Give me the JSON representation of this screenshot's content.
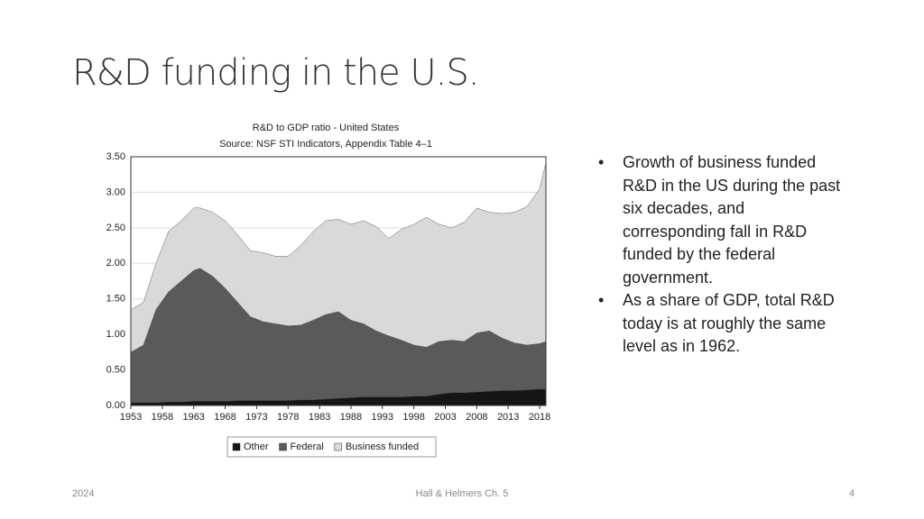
{
  "slide": {
    "title": "R&D funding in the U.S.",
    "bullets": [
      "Growth of business funded R&D in the US during the past six decades, and corresponding fall in R&D funded by the federal government.",
      "As a share of GDP, total R&D today is at roughly the same level as in 1962."
    ],
    "footer": {
      "left": "2024",
      "center": "Hall & Helmers Ch. 5",
      "right": "4"
    }
  },
  "chart_data": {
    "type": "stacked-area",
    "title": "R&D to GDP ratio - United States",
    "subtitle": "Source: NSF STI Indicators, Appendix Table 4–1",
    "x": [
      1953,
      1955,
      1957,
      1959,
      1961,
      1963,
      1964,
      1966,
      1968,
      1970,
      1972,
      1974,
      1976,
      1978,
      1980,
      1982,
      1984,
      1986,
      1988,
      1990,
      1992,
      1994,
      1996,
      1998,
      2000,
      2002,
      2004,
      2006,
      2008,
      2010,
      2012,
      2014,
      2016,
      2018,
      2019
    ],
    "series": [
      {
        "name": "Other",
        "color": "#151515",
        "values": [
          0.04,
          0.04,
          0.04,
          0.05,
          0.05,
          0.06,
          0.06,
          0.06,
          0.06,
          0.07,
          0.07,
          0.07,
          0.07,
          0.07,
          0.08,
          0.08,
          0.09,
          0.1,
          0.11,
          0.12,
          0.12,
          0.12,
          0.12,
          0.13,
          0.13,
          0.16,
          0.18,
          0.18,
          0.19,
          0.2,
          0.21,
          0.21,
          0.22,
          0.23,
          0.23
        ]
      },
      {
        "name": "Federal",
        "color": "#5a5a5a",
        "values": [
          0.71,
          0.81,
          1.31,
          1.55,
          1.7,
          1.84,
          1.87,
          1.76,
          1.59,
          1.38,
          1.18,
          1.11,
          1.08,
          1.05,
          1.05,
          1.12,
          1.19,
          1.22,
          1.09,
          1.03,
          0.93,
          0.86,
          0.8,
          0.72,
          0.69,
          0.74,
          0.74,
          0.72,
          0.83,
          0.85,
          0.74,
          0.67,
          0.63,
          0.64,
          0.67
        ]
      },
      {
        "name": "Business funded",
        "color": "#d9d9d9",
        "values": [
          0.6,
          0.6,
          0.65,
          0.85,
          0.85,
          0.88,
          0.85,
          0.9,
          0.95,
          0.95,
          0.93,
          0.97,
          0.95,
          0.98,
          1.12,
          1.25,
          1.32,
          1.3,
          1.35,
          1.45,
          1.47,
          1.37,
          1.56,
          1.7,
          1.83,
          1.65,
          1.58,
          1.68,
          1.76,
          1.67,
          1.75,
          1.84,
          1.95,
          2.18,
          2.52
        ]
      }
    ],
    "xlim": [
      1953,
      2019
    ],
    "xticks": [
      1953,
      1958,
      1963,
      1968,
      1973,
      1978,
      1983,
      1988,
      1993,
      1998,
      2003,
      2008,
      2013,
      2018
    ],
    "ylim": [
      0,
      3.5
    ],
    "yticks": [
      {
        "value": 0,
        "label": "0.00"
      },
      {
        "value": 0.5,
        "label": "0.50"
      },
      {
        "value": 1,
        "label": "1.00"
      },
      {
        "value": 1.5,
        "label": "1.50"
      },
      {
        "value": 2,
        "label": "2.00"
      },
      {
        "value": 2.5,
        "label": "2.50"
      },
      {
        "value": 3,
        "label": "3.00"
      },
      {
        "value": 3.5,
        "label": "3.50"
      }
    ],
    "grid": true,
    "legend": "bottom"
  }
}
